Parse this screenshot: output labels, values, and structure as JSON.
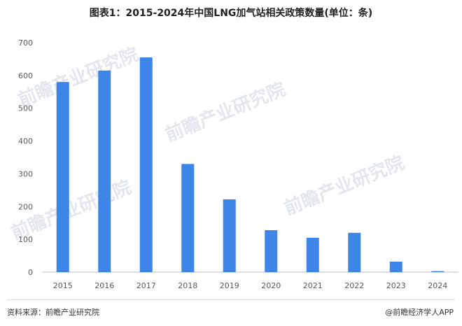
{
  "chart_data": {
    "type": "bar",
    "title": "图表1：2015-2024年中国LNG加气站相关政策数量(单位：条)",
    "categories": [
      "2015",
      "2016",
      "2017",
      "2018",
      "2019",
      "2020",
      "2021",
      "2022",
      "2023",
      "2024"
    ],
    "values": [
      580,
      615,
      655,
      330,
      222,
      128,
      105,
      120,
      32,
      3
    ],
    "ylim": [
      0,
      700
    ],
    "yticks": [
      "0",
      "100",
      "200",
      "300",
      "400",
      "500",
      "600",
      "700"
    ],
    "bar_color": "#3d85e6",
    "grid": false,
    "legend": "none"
  },
  "footer": {
    "source": "资料来源：前瞻产业研究院",
    "brand": "@前瞻经济学人APP"
  },
  "watermark": {
    "text": "前瞻产业研究院"
  }
}
